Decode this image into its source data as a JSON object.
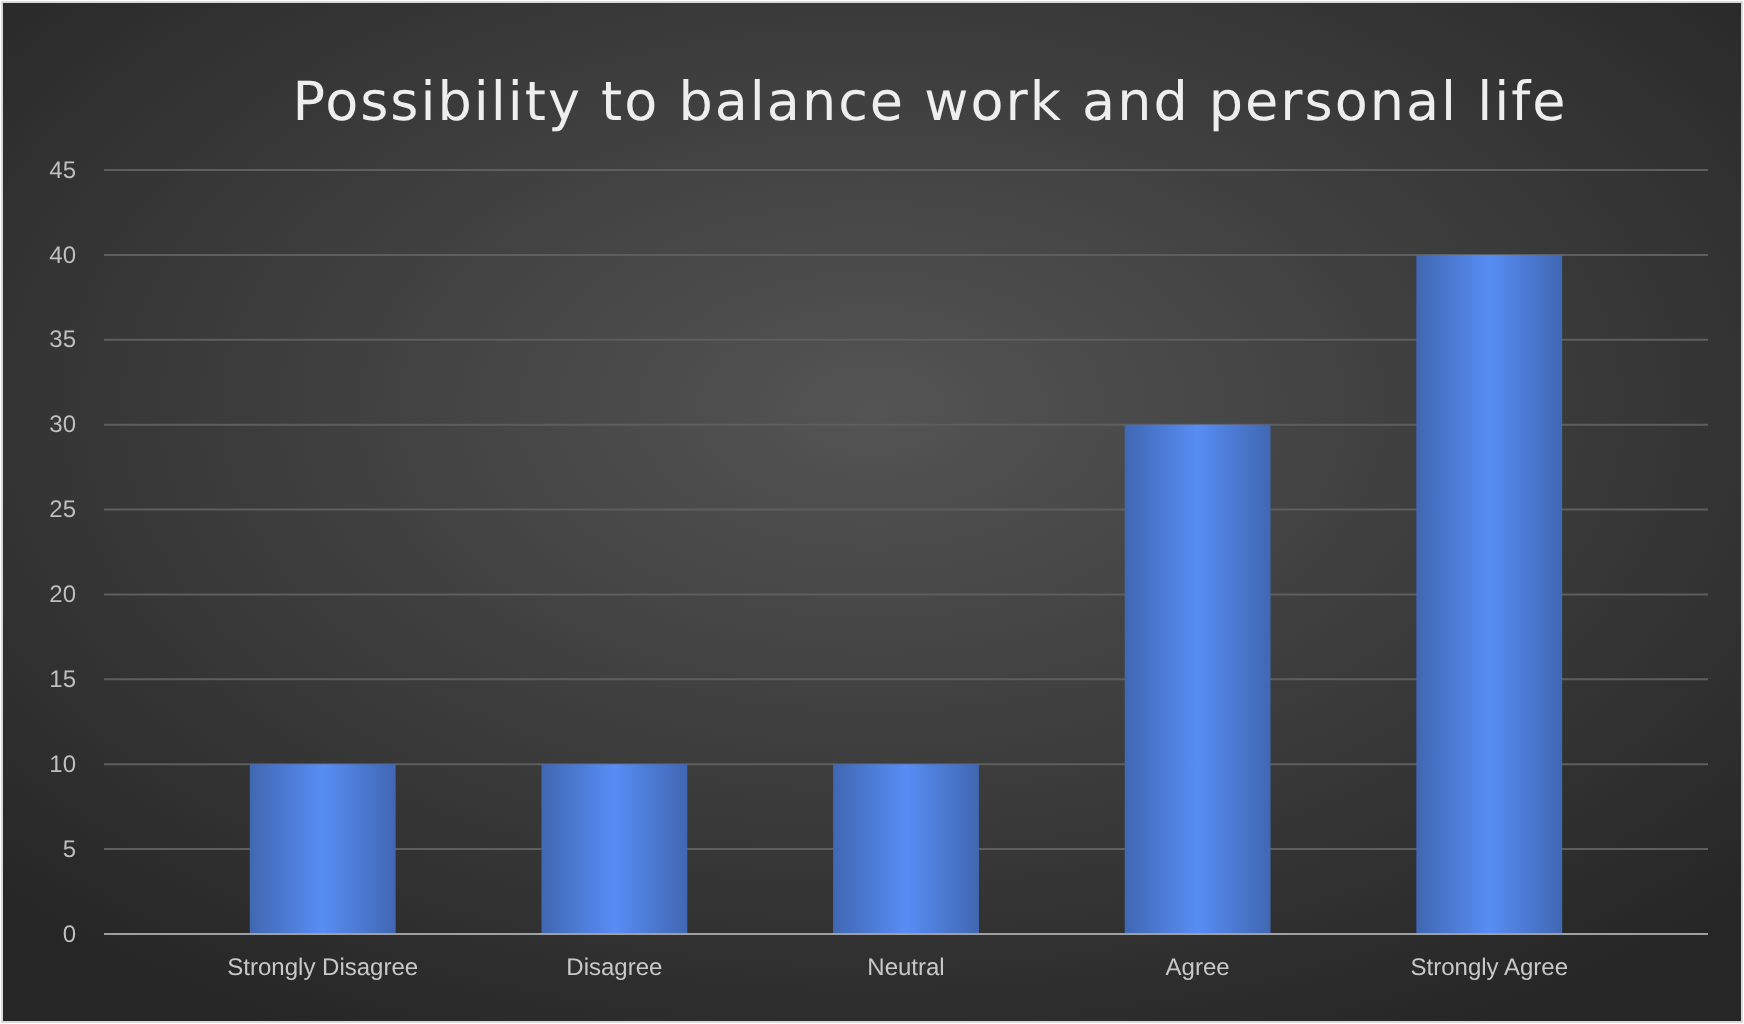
{
  "chart_data": {
    "type": "bar",
    "title": "Possibility to balance work and personal life",
    "categories": [
      "Strongly Disagree",
      "Disagree",
      "Neutral",
      "Agree",
      "Strongly Agree"
    ],
    "values": [
      10,
      10,
      10,
      30,
      40
    ],
    "color": "#4f7fdc",
    "ylim": [
      0,
      45
    ],
    "yticks": [
      0,
      5,
      10,
      15,
      20,
      25,
      30,
      35,
      40,
      45
    ],
    "grid": "y"
  }
}
